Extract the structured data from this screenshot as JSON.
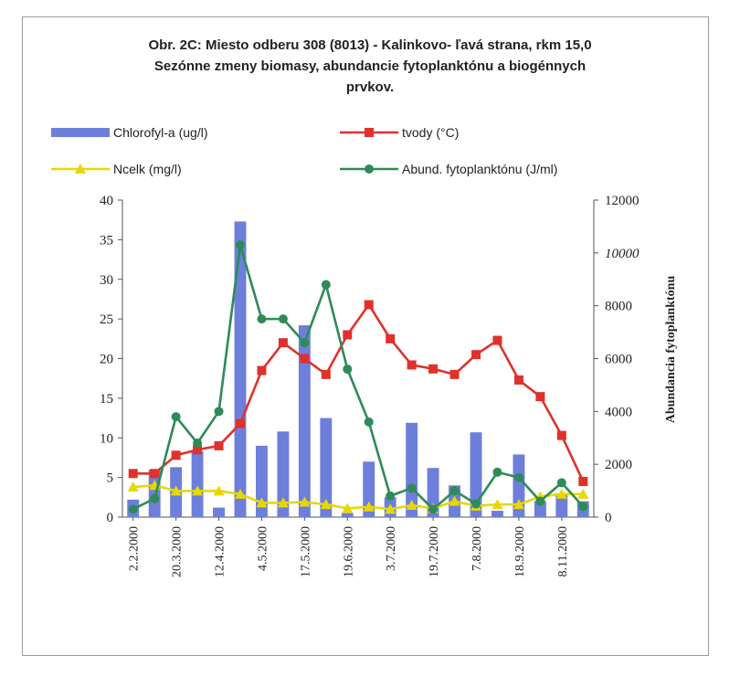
{
  "chart_data": {
    "type": "bar",
    "title": [
      "Obr. 2C: Miesto odberu 308 (8013) - Kalinkovo- ľavá strana, rkm 15,0",
      "Sezónne zmeny biomasy, abundancie fytoplanktónu a biogénnych",
      "prvkov."
    ],
    "xlabel": "",
    "ylabel": "",
    "y2label": "Abundancia fytoplanktónu",
    "ylim": [
      0,
      40
    ],
    "y2lim": [
      0,
      12000
    ],
    "yticks": [
      "0",
      "5",
      "10",
      "15",
      "20",
      "25",
      "30",
      "35",
      "40"
    ],
    "y2ticks": [
      "0",
      "2000",
      "4000",
      "6000",
      "8000",
      "10000",
      "12000"
    ],
    "x_tick_labels": [
      "2.2.2000",
      "20.3.2000",
      "12.4.2000",
      "4.5.2000",
      "17.5.2000",
      "19.6.2000",
      "3.7.2000",
      "19.7.2000",
      "7.8.2000",
      "18.9.2000",
      "8.11.2000"
    ],
    "x_tick_positions": [
      0,
      2,
      4,
      6,
      8,
      10,
      12,
      14,
      16,
      18,
      20
    ],
    "n_points": 22,
    "legend": "top",
    "series": [
      {
        "name": "Chlorofyl-a (ug/l)",
        "type": "bar",
        "axis": "left",
        "color": "#6d7fdb",
        "values": [
          2.2,
          6.0,
          6.3,
          8.3,
          1.2,
          37.3,
          9.0,
          10.8,
          24.2,
          12.5,
          0.5,
          7.0,
          2.5,
          11.9,
          6.2,
          4.0,
          10.7,
          0.8,
          7.9,
          2.0,
          3.0,
          2.0
        ]
      },
      {
        "name": "tvody (°C)",
        "type": "line",
        "axis": "left",
        "color": "#e0312b",
        "marker": "square",
        "values": [
          5.5,
          5.5,
          7.8,
          8.5,
          9.0,
          11.8,
          18.5,
          22.0,
          20.0,
          18.0,
          23.0,
          26.8,
          22.5,
          19.2,
          18.7,
          18.0,
          20.5,
          22.3,
          17.3,
          15.2,
          10.3,
          4.5
        ]
      },
      {
        "name": "Ncelk (mg/l)",
        "type": "line",
        "axis": "left",
        "color": "#e8d800",
        "marker": "triangle",
        "values": [
          3.8,
          4.0,
          3.3,
          3.3,
          3.3,
          2.9,
          1.8,
          1.8,
          1.9,
          1.6,
          1.1,
          1.3,
          1.0,
          1.5,
          1.1,
          2.0,
          1.4,
          1.6,
          1.6,
          2.6,
          2.9,
          2.9
        ]
      },
      {
        "name": "Abund. fytoplanktónu (J/ml)",
        "type": "line",
        "axis": "right",
        "color": "#2e8b57",
        "marker": "circle",
        "values": [
          300,
          700,
          3800,
          2800,
          4000,
          10300,
          7500,
          7500,
          6600,
          8800,
          5600,
          3600,
          800,
          1100,
          300,
          1000,
          500,
          1700,
          1500,
          600,
          1300,
          400
        ]
      }
    ]
  }
}
